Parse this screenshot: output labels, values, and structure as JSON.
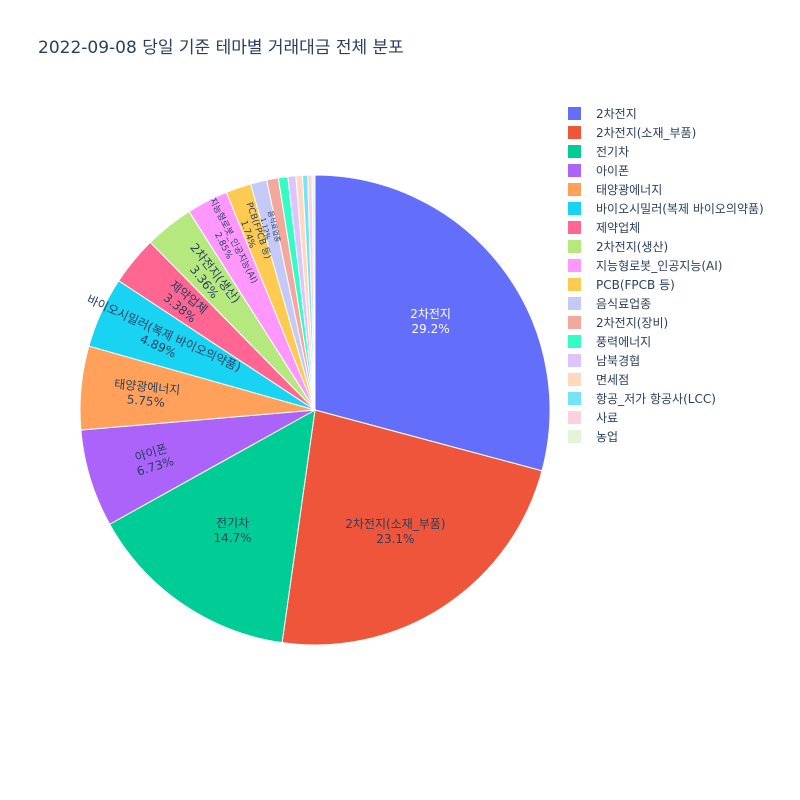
{
  "chart_data": {
    "type": "pie",
    "title": "2022-09-08 당일 기준 테마별 거래대금 전체 분포",
    "legend_position": "right",
    "slices": [
      {
        "label": "2차전지",
        "percent": 29.2,
        "display": "29.2%",
        "color": "#636efa"
      },
      {
        "label": "2차전지(소재_부품)",
        "percent": 23.1,
        "display": "23.1%",
        "color": "#ef553b"
      },
      {
        "label": "전기차",
        "percent": 14.7,
        "display": "14.7%",
        "color": "#00cc96"
      },
      {
        "label": "아이폰",
        "percent": 6.73,
        "display": "6.73%",
        "color": "#ab63fa"
      },
      {
        "label": "태양광에너지",
        "percent": 5.75,
        "display": "5.75%",
        "color": "#ffa15a"
      },
      {
        "label": "바이오시밀러(복제 바이오의약품)",
        "percent": 4.89,
        "display": "4.89%",
        "color": "#19d3f3"
      },
      {
        "label": "제약업체",
        "percent": 3.38,
        "display": "3.38%",
        "color": "#ff6692"
      },
      {
        "label": "2차전지(생산)",
        "percent": 3.36,
        "display": "3.36%",
        "color": "#b6e880"
      },
      {
        "label": "지능형로봇_인공지능(AI)",
        "percent": 2.85,
        "display": "2.85%",
        "color": "#ff97ff"
      },
      {
        "label": "PCB(FPCB 등)",
        "percent": 1.74,
        "display": "1.74%",
        "color": "#fecb52"
      },
      {
        "label": "음식료업종",
        "percent": 1.12,
        "display": "1.12%",
        "color": "#c5c9f8"
      },
      {
        "label": "2차전지(장비)",
        "percent": 0.8,
        "display": "",
        "color": "#f2a89c"
      },
      {
        "label": "풍력에너지",
        "percent": 0.65,
        "display": "",
        "color": "#33fdc5"
      },
      {
        "label": "남북경협",
        "percent": 0.55,
        "display": "",
        "color": "#ddc4fc"
      },
      {
        "label": "면세점",
        "percent": 0.45,
        "display": "",
        "color": "#ffd9bd"
      },
      {
        "label": "항공_저가 항공사(LCC)",
        "percent": 0.35,
        "display": "",
        "color": "#75e3f8"
      },
      {
        "label": "사료",
        "percent": 0.3,
        "display": "",
        "color": "#ffd0de"
      },
      {
        "label": "농업",
        "percent": 0.2,
        "display": "",
        "color": "#e2f5d6"
      }
    ]
  }
}
